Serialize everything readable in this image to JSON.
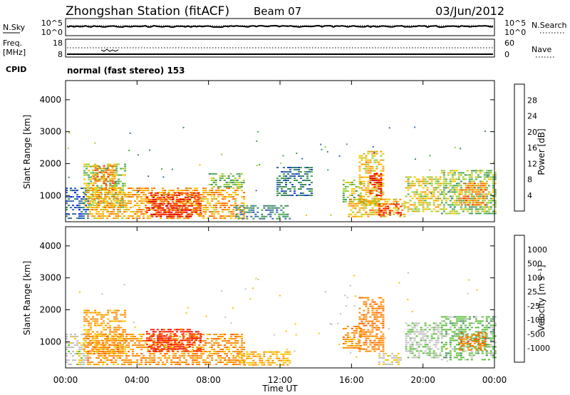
{
  "header": {
    "station": "Zhongshan Station (fitACF)",
    "beam": "Beam 07",
    "date": "03/Jun/2012"
  },
  "top_panels": {
    "nsky_label": "N.Sky",
    "nsky_ticks": [
      "10^5",
      "10^0"
    ],
    "nsearch_label": "N.Search",
    "nsearch_ticks": [
      "10^5",
      "10^0"
    ],
    "freq_label": "Freq.",
    "freq_unit": "[MHz]",
    "freq_ticks": [
      "18",
      "8"
    ],
    "nave_label": "Nave",
    "nave_ticks": [
      "60",
      "0"
    ],
    "cpid_label": "CPID",
    "cpid_value": "normal (fast stereo) 153"
  },
  "x_axis": {
    "label": "Time UT",
    "ticks": [
      "00:00",
      "04:00",
      "08:00",
      "12:00",
      "16:00",
      "20:00",
      "00:00"
    ],
    "range_hours": [
      0,
      24
    ]
  },
  "y_axis": {
    "label": "Slant Range [km]",
    "ticks": [
      1000,
      2000,
      3000,
      4000
    ],
    "range_km": [
      180,
      4600
    ]
  },
  "power_scale": {
    "label": "Power [dB]",
    "ticks": [
      "28",
      "24",
      "20",
      "16",
      "12",
      "8",
      "4"
    ],
    "colors": [
      "#0018ff",
      "#1e46c8",
      "#3a6ea5",
      "#3f8c5e",
      "#4caa4c",
      "#9acd32",
      "#f5c400",
      "#ff9900",
      "#ff6a00",
      "#ff2a00",
      "#e00000"
    ]
  },
  "velocity_scale": {
    "label": "Velocity [m s⁻¹]",
    "ticks": [
      "1000",
      "500",
      "100",
      "25",
      "-25",
      "-100",
      "-500",
      "-1000"
    ],
    "colors": [
      "#1a3fb5",
      "#2e6aa0",
      "#3f8c5e",
      "#5cbf3c",
      "#c0c0c0",
      "#f5c400",
      "#ff8c00",
      "#ff6000",
      "#ff2000",
      "#e00000"
    ]
  },
  "chart_data": [
    {
      "type": "heatmap",
      "title": "Power [dB]",
      "xlabel": "Time UT",
      "ylabel": "Slant Range [km]",
      "x_range_hours": [
        0,
        24
      ],
      "y_range_km": [
        180,
        4600
      ],
      "value_range_db": [
        0,
        30
      ],
      "regions": [
        {
          "t0": 0.0,
          "t1": 1.3,
          "r0": 250,
          "r1": 1250,
          "value_db": 6
        },
        {
          "t0": 1.0,
          "t1": 3.3,
          "r0": 600,
          "r1": 2000,
          "value_db": 15
        },
        {
          "t0": 1.5,
          "t1": 2.8,
          "r0": 1200,
          "r1": 1950,
          "value_db": 22
        },
        {
          "t0": 1.2,
          "t1": 10.0,
          "r0": 300,
          "r1": 1250,
          "value_db": 20
        },
        {
          "t0": 4.5,
          "t1": 7.5,
          "r0": 400,
          "r1": 1100,
          "value_db": 26
        },
        {
          "t0": 4.8,
          "t1": 7.0,
          "r0": 300,
          "r1": 700,
          "value_db": 28
        },
        {
          "t0": 8.0,
          "t1": 10.0,
          "r0": 1250,
          "r1": 1700,
          "value_db": 13
        },
        {
          "t0": 9.5,
          "t1": 12.5,
          "r0": 280,
          "r1": 700,
          "value_db": 9
        },
        {
          "t0": 11.8,
          "t1": 13.8,
          "r0": 1000,
          "r1": 1900,
          "value_db": 8
        },
        {
          "t0": 15.5,
          "t1": 16.5,
          "r0": 800,
          "r1": 1500,
          "value_db": 14
        },
        {
          "t0": 16.4,
          "t1": 17.8,
          "r0": 700,
          "r1": 2400,
          "value_db": 18
        },
        {
          "t0": 17.0,
          "t1": 17.6,
          "r0": 1000,
          "r1": 1700,
          "value_db": 27
        },
        {
          "t0": 15.8,
          "t1": 19.0,
          "r0": 300,
          "r1": 900,
          "value_db": 19
        },
        {
          "t0": 17.5,
          "t1": 18.8,
          "r0": 400,
          "r1": 750,
          "value_db": 26
        },
        {
          "t0": 19.0,
          "t1": 21.0,
          "r0": 500,
          "r1": 1600,
          "value_db": 17
        },
        {
          "t0": 21.0,
          "t1": 24.0,
          "r0": 400,
          "r1": 1800,
          "value_db": 14
        },
        {
          "t0": 22.0,
          "t1": 23.5,
          "r0": 700,
          "r1": 1400,
          "value_db": 22
        }
      ]
    },
    {
      "type": "heatmap",
      "title": "Velocity [m s⁻¹]",
      "xlabel": "Time UT",
      "ylabel": "Slant Range [km]",
      "x_range_hours": [
        0,
        24
      ],
      "y_range_km": [
        180,
        4600
      ],
      "value_range_ms": [
        -1000,
        1000
      ],
      "regions": [
        {
          "t0": 0.0,
          "t1": 1.3,
          "r0": 250,
          "r1": 1250,
          "value_ms": 80
        },
        {
          "t0": 1.0,
          "t1": 3.3,
          "r0": 600,
          "r1": 2000,
          "value_ms": -250
        },
        {
          "t0": 1.2,
          "t1": 10.0,
          "r0": 300,
          "r1": 1250,
          "value_ms": -300
        },
        {
          "t0": 4.5,
          "t1": 7.5,
          "r0": 700,
          "r1": 1400,
          "value_ms": -700
        },
        {
          "t0": 9.5,
          "t1": 12.5,
          "r0": 280,
          "r1": 700,
          "value_ms": -200
        },
        {
          "t0": 15.5,
          "t1": 16.5,
          "r0": 800,
          "r1": 1500,
          "value_ms": -300
        },
        {
          "t0": 16.4,
          "t1": 17.8,
          "r0": 700,
          "r1": 2400,
          "value_ms": -350
        },
        {
          "t0": 17.5,
          "t1": 18.8,
          "r0": 300,
          "r1": 650,
          "value_ms": 0
        },
        {
          "t0": 19.0,
          "t1": 21.0,
          "r0": 500,
          "r1": 1600,
          "value_ms": 150
        },
        {
          "t0": 21.0,
          "t1": 24.0,
          "r0": 400,
          "r1": 1800,
          "value_ms": 300
        },
        {
          "t0": 22.0,
          "t1": 23.5,
          "r0": 700,
          "r1": 1300,
          "value_ms": -400
        }
      ]
    }
  ]
}
